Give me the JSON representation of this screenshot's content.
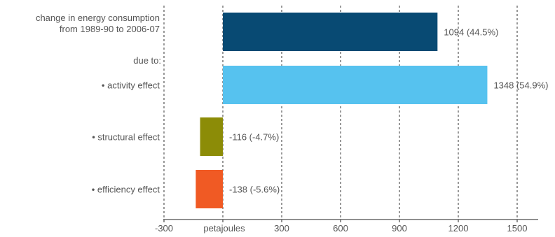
{
  "chart_data": {
    "type": "bar",
    "orientation": "horizontal",
    "xlabel": "petajoules",
    "xlim": [
      -300,
      1550
    ],
    "x_ticks": [
      -300,
      0,
      300,
      600,
      900,
      1200,
      1500
    ],
    "x_tick_labels": [
      "-300",
      "",
      "300",
      "600",
      "900",
      "1200",
      "1500"
    ],
    "grid": true,
    "section_label": "due to:",
    "categories": [
      {
        "label_lines": [
          "change in energy consumption",
          "from 1989-90 to 2006-07"
        ],
        "value": 1094,
        "value_label": "1094 (44.5%)",
        "color": "#084a73"
      },
      {
        "label_lines": [
          "• activity effect"
        ],
        "value": 1348,
        "value_label": "1348 (54.9%)",
        "color": "#56c2ef"
      },
      {
        "label_lines": [
          "• structural effect"
        ],
        "value": -116,
        "value_label": "-116 (-4.7%)",
        "color": "#8c8c07"
      },
      {
        "label_lines": [
          "• efficiency effect"
        ],
        "value": -138,
        "value_label": "-138 (-5.6%)",
        "color": "#f05a24"
      }
    ]
  }
}
